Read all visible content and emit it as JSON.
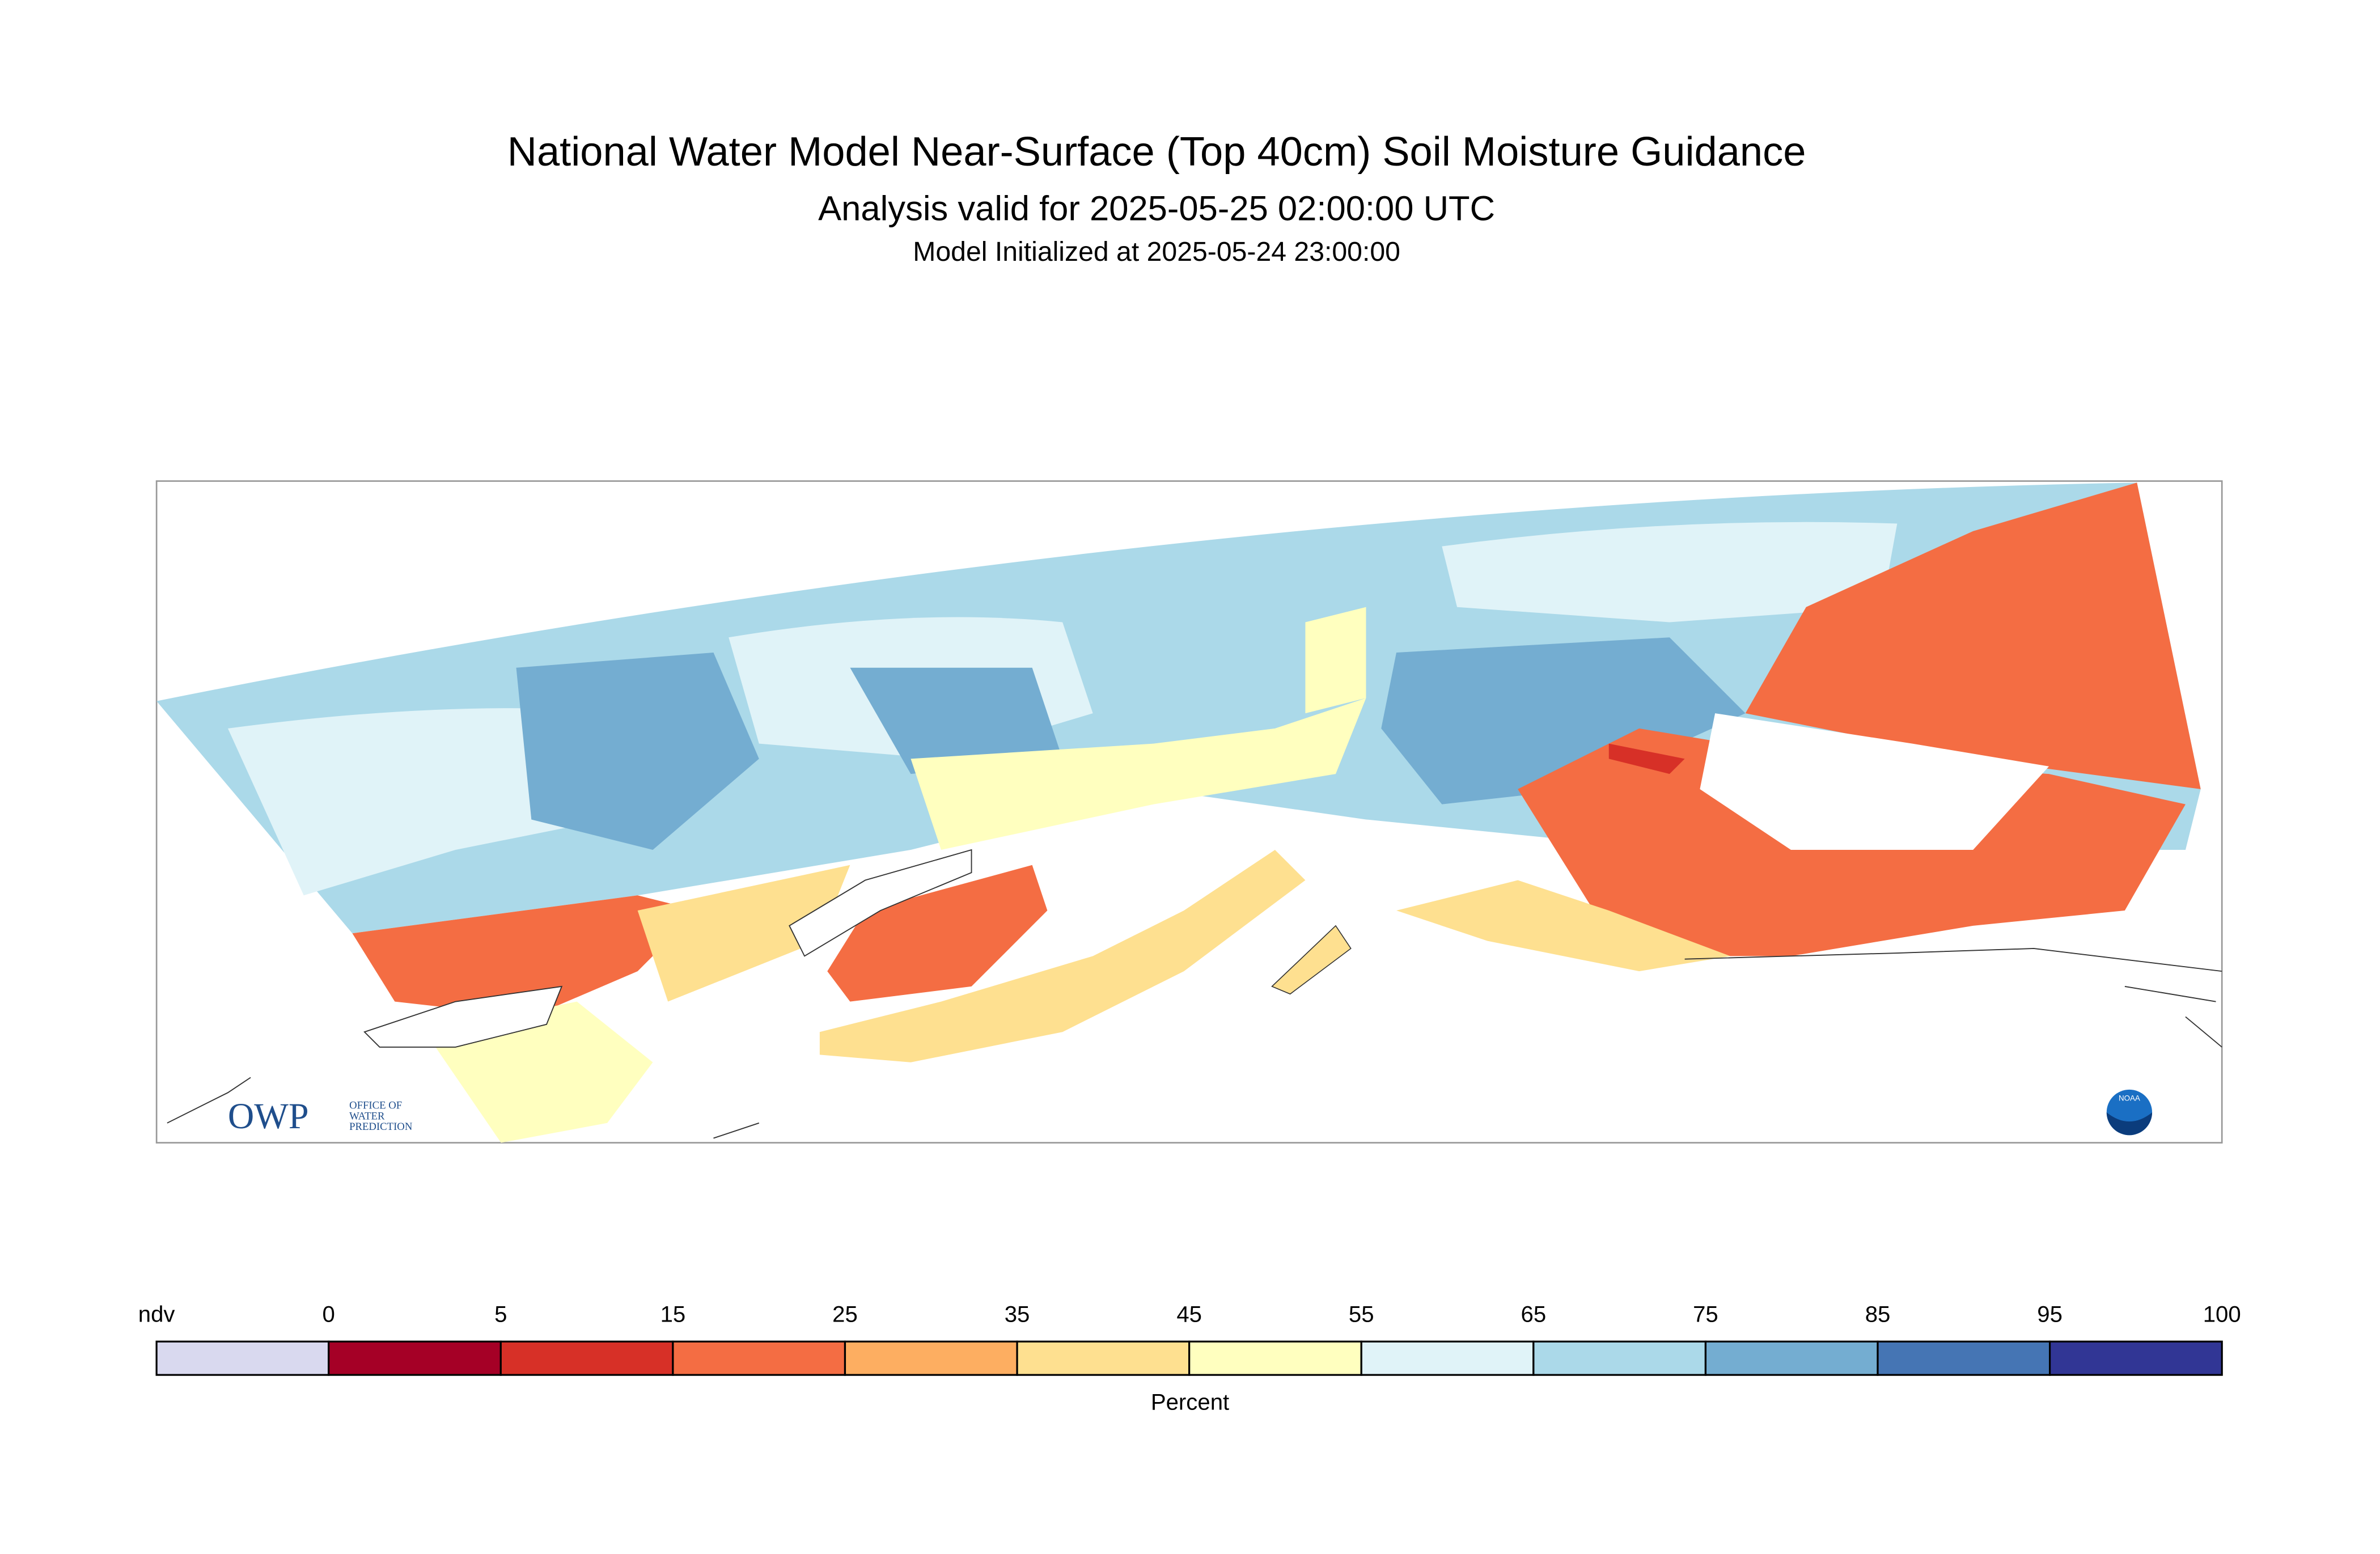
{
  "header": {
    "title": "National Water Model Near-Surface (Top 40cm) Soil Moisture Guidance",
    "subtitle": "Analysis valid for 2025-05-25 02:00:00 UTC",
    "initialized": "Model Initialized at 2025-05-24 23:00:00"
  },
  "logos": {
    "owp": "OWP",
    "owp_lines": [
      "OFFICE OF",
      "WATER",
      "PREDICTION"
    ],
    "noaa": "NOAA"
  },
  "legend": {
    "labels": [
      "ndv",
      0,
      5,
      15,
      25,
      35,
      45,
      55,
      65,
      75,
      85,
      95,
      100
    ],
    "colors": [
      "#d9d9ef",
      "#a50026",
      "#d73027",
      "#f46d43",
      "#fdae61",
      "#fee090",
      "#ffffbf",
      "#e0f3f8",
      "#abd9e9",
      "#74add1",
      "#4575b4",
      "#313695"
    ],
    "axis_label": "Percent"
  }
}
